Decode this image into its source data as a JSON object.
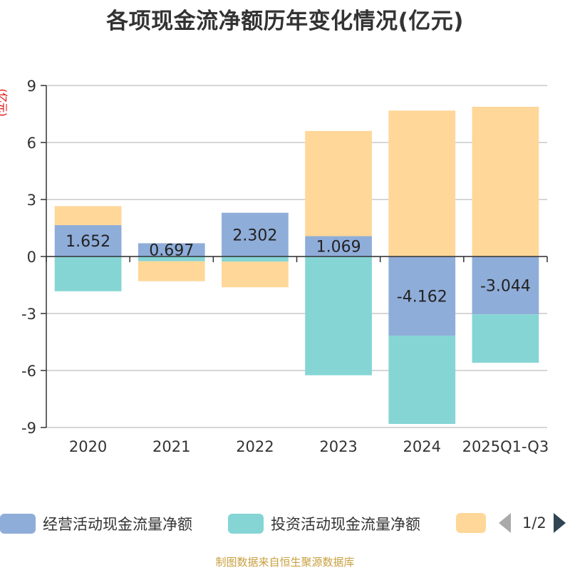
{
  "title": "各项现金流净额历年变化情况(亿元)",
  "unit_label": "(亿元)",
  "footer": "制图数据来自恒生聚源数据库",
  "legend_pager": "1/2",
  "chart_data": {
    "type": "bar",
    "stacked": true,
    "title": "各项现金流净额历年变化情况(亿元)",
    "ylabel": "(亿元)",
    "ylim": [
      -9,
      9
    ],
    "yticks": [
      9,
      6,
      3,
      0,
      -3,
      -6,
      -9
    ],
    "categories": [
      "2020",
      "2021",
      "2022",
      "2023",
      "2024",
      "2025Q1-Q3"
    ],
    "series": [
      {
        "name": "经营活动现金流量净额",
        "color": "#8fadd9",
        "values": [
          1.652,
          0.697,
          2.302,
          1.069,
          -4.162,
          -3.044
        ],
        "labels": [
          "1.652",
          "0.697",
          "2.302",
          "1.069",
          "-4.162",
          "-3.044"
        ]
      },
      {
        "name": "投资活动现金流量净额",
        "color": "#86d5d5",
        "values": [
          -1.83,
          -0.25,
          -0.27,
          -6.25,
          -4.65,
          -2.55
        ]
      },
      {
        "name": "",
        "color": "#fed799",
        "values": [
          1.0,
          -1.05,
          -1.35,
          5.54,
          7.68,
          7.88
        ]
      }
    ]
  }
}
